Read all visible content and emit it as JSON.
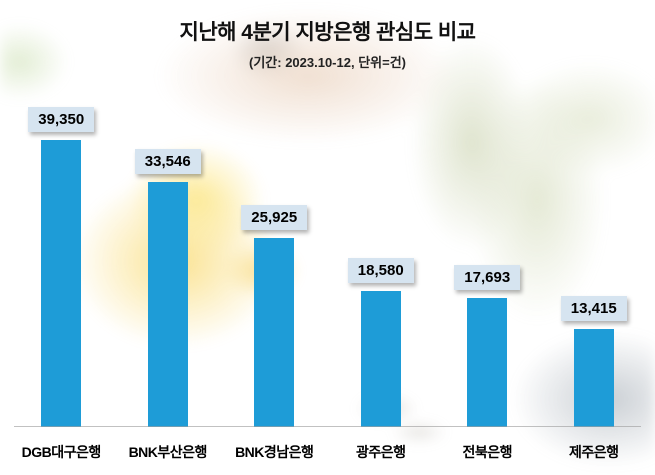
{
  "page": {
    "title": "지난해 4분기 지방은행 관심도 비교",
    "subtitle": "(기간: 2023.10-12, 단위=건)"
  },
  "chart_data": {
    "type": "bar",
    "title": "지난해 4분기 지방은행 관심도 비교",
    "subtitle": "(기간: 2023.10-12, 단위=건)",
    "categories": [
      "DGB대구은행",
      "BNK부산은행",
      "BNK경남은행",
      "광주은행",
      "전북은행",
      "제주은행"
    ],
    "values": [
      39350,
      33546,
      25925,
      18580,
      17693,
      13415
    ],
    "value_labels": [
      "39,350",
      "33,546",
      "25,925",
      "18,580",
      "17,693",
      "13,415"
    ],
    "xlabel": "",
    "ylabel": "",
    "ylim": [
      0,
      40000
    ],
    "grid": false,
    "legend": "none",
    "bar_color": "#1e9cd7",
    "value_label_bg": "#d6e4f0",
    "background": "faded photo: hand dropping coin into yellow piggy bank, banknotes and calculator"
  }
}
